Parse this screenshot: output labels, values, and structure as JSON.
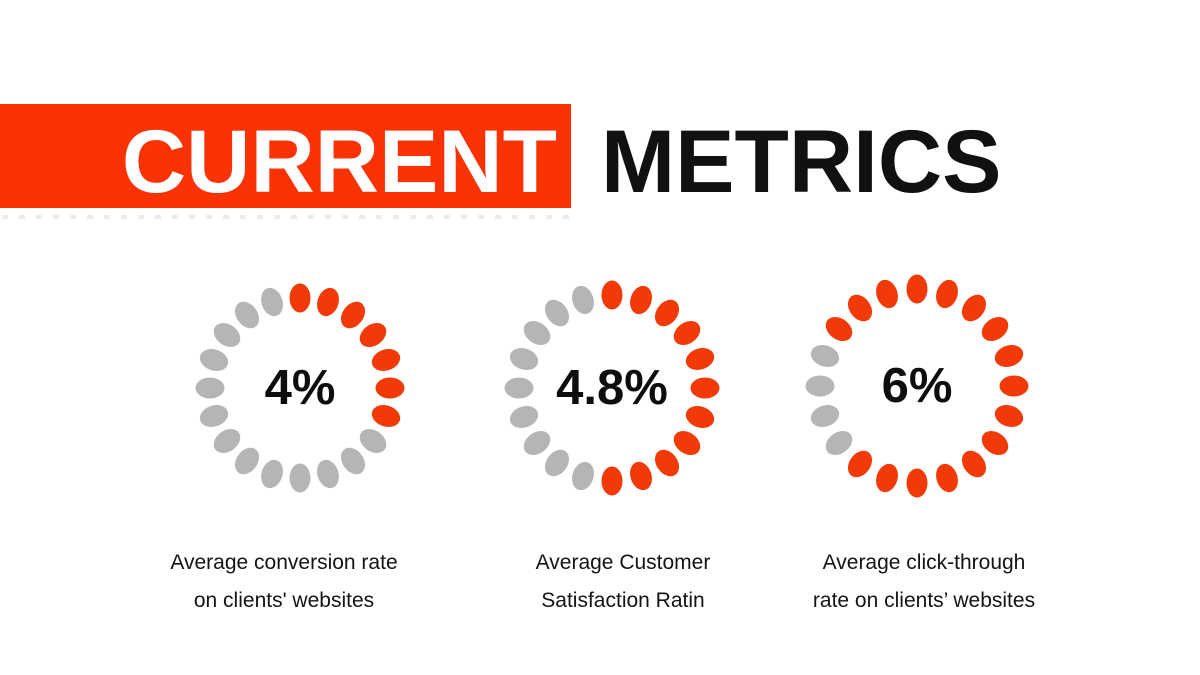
{
  "header": {
    "title_highlight": "CURRENT",
    "title_rest": "METRICS",
    "band_color": "#fb3304",
    "highlight_text_color": "#ffffff",
    "rest_text_color": "#111111"
  },
  "colors": {
    "dot_filled": "#f13a08",
    "dot_empty": "#b5b5b5",
    "value_text": "#0d0d0d",
    "caption_text": "#141414"
  },
  "gauges": [
    {
      "value": "4%",
      "caption_line1": "Average conversion rate",
      "caption_line2": "on clients' websites",
      "dots_total": 20,
      "dots_filled": 7,
      "filled_start_index": 0
    },
    {
      "value": "4.8%",
      "caption_line1": "Average Customer",
      "caption_line2": "Satisfaction Ratin",
      "dots_total": 20,
      "dots_filled": 11,
      "filled_start_index": 0
    },
    {
      "value": "6%",
      "caption_line1": "Average click-through",
      "caption_line2": "rate on clients’ websites",
      "dots_total": 20,
      "dots_filled": 16,
      "filled_start_index": 17
    }
  ],
  "chart_data": [
    {
      "type": "pie",
      "title": "Average conversion rate on clients' websites",
      "center_label": "4%",
      "labels": [
        "filled",
        "remaining"
      ],
      "values": [
        7,
        13
      ],
      "units": "dots of 20",
      "legend_position": "none"
    },
    {
      "type": "pie",
      "title": "Average Customer Satisfaction Ratin",
      "center_label": "4.8%",
      "labels": [
        "filled",
        "remaining"
      ],
      "values": [
        11,
        9
      ],
      "units": "dots of 20",
      "legend_position": "none"
    },
    {
      "type": "pie",
      "title": "Average click-through rate on clients’ websites",
      "center_label": "6%",
      "labels": [
        "filled",
        "remaining"
      ],
      "values": [
        16,
        4
      ],
      "units": "dots of 20",
      "legend_position": "none"
    }
  ]
}
